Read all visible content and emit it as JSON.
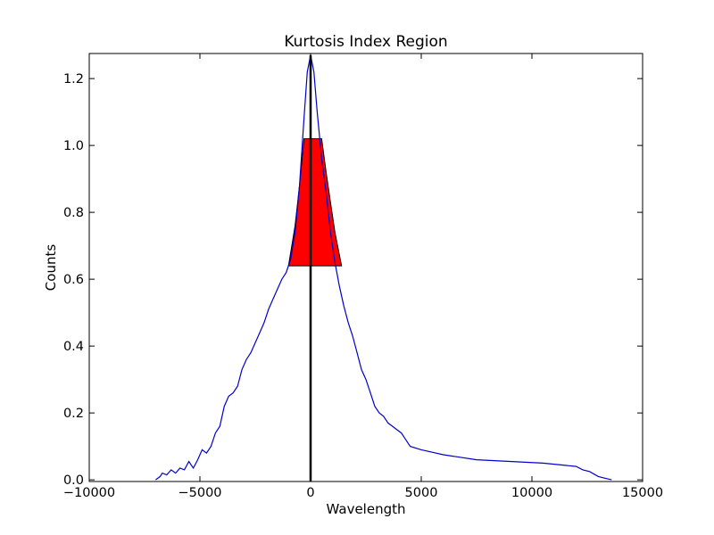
{
  "chart_data": {
    "type": "line",
    "title": "Kurtosis Index Region",
    "xlabel": "Wavelength",
    "ylabel": "Counts",
    "xlim": [
      -10000,
      15000
    ],
    "ylim": [
      -0.005,
      1.275
    ],
    "grid": false,
    "x_ticks": [
      -10000,
      -5000,
      0,
      5000,
      10000,
      15000
    ],
    "x_tick_labels": [
      "−10000",
      "−5000",
      "0",
      "5000",
      "10000",
      "15000"
    ],
    "y_ticks": [
      0.0,
      0.2,
      0.4,
      0.6,
      0.8,
      1.0,
      1.2
    ],
    "y_tick_labels": [
      "0.0",
      "0.2",
      "0.4",
      "0.6",
      "0.8",
      "1.0",
      "1.2"
    ],
    "colors": {
      "spectrum": "#0000cc",
      "region_fill": "#ff0000",
      "region_edge": "#000000",
      "center_line": "#000000"
    },
    "series": [
      {
        "x": [
          -7000,
          -6800,
          -6700,
          -6500,
          -6300,
          -6100,
          -5900,
          -5700,
          -5500,
          -5300,
          -5100,
          -4900,
          -4700,
          -4500,
          -4300,
          -4100,
          -3900,
          -3700,
          -3500,
          -3300,
          -3100,
          -2900,
          -2700,
          -2500,
          -2300,
          -2100,
          -1900,
          -1700,
          -1500,
          -1300,
          -1100,
          -900,
          -700,
          -500,
          -300,
          -150,
          0,
          150,
          300,
          500,
          700,
          900,
          1100,
          1300,
          1500,
          1700,
          1900,
          2100,
          2300,
          2500,
          2700,
          2900,
          3100,
          3300,
          3500,
          3700,
          3900,
          4100,
          4300,
          4500,
          5000,
          6000,
          7500,
          9000,
          10500,
          12000,
          12300,
          12600,
          13000,
          13300,
          13600
        ],
        "y": [
          0.0,
          0.01,
          0.02,
          0.015,
          0.03,
          0.02,
          0.035,
          0.03,
          0.055,
          0.035,
          0.06,
          0.09,
          0.08,
          0.1,
          0.14,
          0.16,
          0.22,
          0.25,
          0.26,
          0.28,
          0.33,
          0.36,
          0.38,
          0.41,
          0.44,
          0.47,
          0.51,
          0.54,
          0.57,
          0.6,
          0.62,
          0.66,
          0.74,
          0.88,
          1.08,
          1.22,
          1.27,
          1.22,
          1.1,
          0.96,
          0.86,
          0.74,
          0.65,
          0.58,
          0.52,
          0.47,
          0.43,
          0.38,
          0.33,
          0.3,
          0.26,
          0.22,
          0.2,
          0.19,
          0.17,
          0.16,
          0.15,
          0.14,
          0.12,
          0.1,
          0.09,
          0.075,
          0.06,
          0.055,
          0.05,
          0.04,
          0.03,
          0.025,
          0.01,
          0.005,
          0.0
        ]
      }
    ],
    "shaded_region": {
      "x": [
        -1000,
        -900,
        -700,
        -500,
        -300,
        -300,
        500,
        500,
        700,
        900,
        1100,
        1400
      ],
      "y": [
        0.64,
        0.68,
        0.76,
        0.88,
        1.02,
        1.02,
        1.02,
        1.02,
        0.92,
        0.83,
        0.74,
        0.64
      ],
      "y_bottom": 0.64
    },
    "center_line_x": 0
  }
}
